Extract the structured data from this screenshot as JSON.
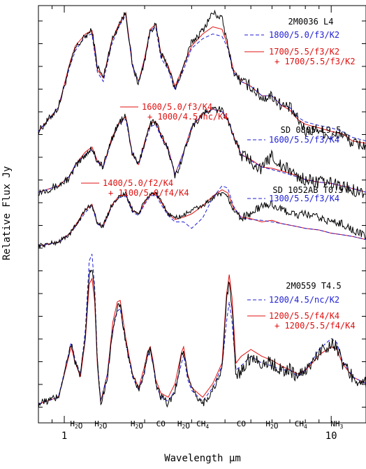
{
  "chart_data": {
    "type": "line",
    "title": "",
    "xlabel": "Wavelength μm",
    "ylabel": "Relative Flux Jy",
    "x_scale": "log",
    "xlim": [
      0.8,
      13.5
    ],
    "x_ticks": [
      {
        "value": 1,
        "label": "1"
      },
      {
        "value": 10,
        "label": "10"
      }
    ],
    "colors": {
      "observed": "#000000",
      "model_blue": "#1f1fd6",
      "model_red": "#e01010"
    },
    "features": [
      {
        "x": 1.11,
        "label": "H2O"
      },
      {
        "x": 1.37,
        "label": "H2O"
      },
      {
        "x": 1.87,
        "label": "H2O"
      },
      {
        "x": 2.3,
        "label": "CO"
      },
      {
        "x": 2.8,
        "label": "H2O"
      },
      {
        "x": 3.3,
        "label": "CH4"
      },
      {
        "x": 4.6,
        "label": "CO"
      },
      {
        "x": 6.0,
        "label": "H2O"
      },
      {
        "x": 7.7,
        "label": "CH4"
      },
      {
        "x": 10.5,
        "label": "NH3"
      }
    ],
    "spectra": [
      {
        "object": "2M0036 L4",
        "models": [
          {
            "style": "dashed",
            "color": "blue",
            "lines": [
              "1800/5.0/f3/K2"
            ]
          },
          {
            "style": "solid",
            "color": "red",
            "lines": [
              "1700/5.5/f3/K2",
              "+ 1700/5.5/f3/K2"
            ]
          }
        ],
        "x": [
          0.8,
          0.95,
          1.05,
          1.1,
          1.2,
          1.27,
          1.33,
          1.4,
          1.5,
          1.6,
          1.7,
          1.8,
          1.9,
          2.0,
          2.1,
          2.2,
          2.3,
          2.45,
          2.6,
          2.8,
          3.0,
          3.3,
          3.6,
          3.9,
          4.1,
          4.3,
          4.6,
          5.0,
          5.5,
          6.0,
          6.5,
          7.0,
          7.5,
          8.0,
          9.0,
          10.0,
          11.0,
          12.0,
          13.5
        ],
        "observed": [
          0.0,
          0.2,
          0.55,
          0.7,
          0.8,
          0.85,
          0.55,
          0.45,
          0.75,
          0.9,
          1.0,
          0.55,
          0.4,
          0.6,
          0.85,
          0.9,
          0.65,
          0.55,
          0.35,
          0.55,
          0.75,
          0.85,
          1.0,
          0.95,
          0.72,
          0.5,
          0.42,
          0.38,
          0.28,
          0.3,
          0.22,
          0.2,
          0.1,
          0.0,
          0.02,
          -0.05,
          -0.02,
          -0.1,
          -0.12
        ],
        "model_blue": [
          0.0,
          0.2,
          0.55,
          0.68,
          0.8,
          0.82,
          0.5,
          0.42,
          0.72,
          0.88,
          0.98,
          0.55,
          0.42,
          0.6,
          0.85,
          0.88,
          0.62,
          0.52,
          0.35,
          0.52,
          0.7,
          0.78,
          0.82,
          0.8,
          0.7,
          0.5,
          0.42,
          0.38,
          0.3,
          0.3,
          0.22,
          0.2,
          0.12,
          0.08,
          0.05,
          0.03,
          0.0,
          -0.05,
          -0.08
        ],
        "model_red": [
          0.0,
          0.2,
          0.58,
          0.72,
          0.82,
          0.85,
          0.52,
          0.45,
          0.75,
          0.9,
          1.0,
          0.55,
          0.42,
          0.62,
          0.86,
          0.9,
          0.66,
          0.55,
          0.38,
          0.55,
          0.72,
          0.82,
          0.88,
          0.86,
          0.72,
          0.52,
          0.42,
          0.38,
          0.3,
          0.3,
          0.22,
          0.18,
          0.1,
          0.06,
          0.03,
          0.0,
          -0.02,
          -0.08,
          -0.1
        ]
      },
      {
        "object": "SD 0805 L9.5",
        "models": [
          {
            "style": "solid",
            "color": "red",
            "lines": [
              "1600/5.0/f3/K4",
              "+ 1000/4.5/nc/K4"
            ]
          },
          {
            "style": "dashed",
            "color": "blue",
            "lines": [
              "1600/5.5/f3/K4"
            ]
          }
        ],
        "x": [
          0.8,
          0.95,
          1.05,
          1.1,
          1.2,
          1.27,
          1.33,
          1.4,
          1.5,
          1.6,
          1.7,
          1.8,
          1.9,
          2.0,
          2.1,
          2.2,
          2.3,
          2.45,
          2.6,
          2.8,
          3.0,
          3.3,
          3.6,
          3.9,
          4.1,
          4.3,
          4.6,
          5.0,
          5.5,
          6.0,
          6.5,
          7.0,
          7.5,
          8.0,
          9.0,
          10.0,
          11.0,
          12.0,
          13.5
        ],
        "observed": [
          0.0,
          0.05,
          0.12,
          0.2,
          0.3,
          0.35,
          0.25,
          0.2,
          0.42,
          0.55,
          0.6,
          0.3,
          0.22,
          0.4,
          0.55,
          0.56,
          0.45,
          0.35,
          0.12,
          0.3,
          0.52,
          0.62,
          0.66,
          0.65,
          0.58,
          0.45,
          0.3,
          0.25,
          0.18,
          0.3,
          0.2,
          0.18,
          0.12,
          0.1,
          0.08,
          0.07,
          0.05,
          0.02,
          0.0
        ],
        "model_blue": [
          0.0,
          0.05,
          0.13,
          0.22,
          0.3,
          0.34,
          0.24,
          0.2,
          0.4,
          0.54,
          0.58,
          0.3,
          0.22,
          0.38,
          0.52,
          0.54,
          0.44,
          0.34,
          0.14,
          0.32,
          0.52,
          0.62,
          0.66,
          0.64,
          0.58,
          0.45,
          0.3,
          0.25,
          0.2,
          0.18,
          0.16,
          0.14,
          0.12,
          0.1,
          0.08,
          0.07,
          0.05,
          0.03,
          0.0
        ],
        "model_red": [
          0.0,
          0.05,
          0.13,
          0.22,
          0.32,
          0.36,
          0.25,
          0.2,
          0.42,
          0.55,
          0.6,
          0.3,
          0.22,
          0.4,
          0.55,
          0.56,
          0.45,
          0.35,
          0.14,
          0.32,
          0.52,
          0.62,
          0.66,
          0.64,
          0.58,
          0.45,
          0.3,
          0.26,
          0.2,
          0.19,
          0.17,
          0.15,
          0.13,
          0.1,
          0.08,
          0.07,
          0.05,
          0.03,
          0.0
        ]
      },
      {
        "object": "SD 1052AB T0.5",
        "models": [
          {
            "style": "solid",
            "color": "red",
            "lines": [
              "1400/5.0/f2/K4",
              "+ 1100/5.0/f4/K4"
            ]
          },
          {
            "style": "dashed",
            "color": "blue",
            "lines": [
              "1300/5.5/f3/K4"
            ]
          }
        ],
        "x": [
          0.8,
          0.95,
          1.05,
          1.1,
          1.2,
          1.27,
          1.33,
          1.4,
          1.5,
          1.6,
          1.7,
          1.8,
          1.9,
          2.0,
          2.1,
          2.2,
          2.3,
          2.45,
          2.6,
          2.8,
          3.0,
          3.3,
          3.6,
          3.9,
          4.1,
          4.3,
          4.6,
          5.0,
          5.5,
          6.0,
          6.5,
          7.0,
          7.5,
          8.0,
          9.0,
          10.0,
          11.0,
          12.0,
          13.5
        ],
        "observed": [
          0.0,
          0.05,
          0.15,
          0.25,
          0.45,
          0.52,
          0.28,
          0.25,
          0.5,
          0.62,
          0.65,
          0.45,
          0.4,
          0.55,
          0.65,
          0.66,
          0.55,
          0.4,
          0.35,
          0.38,
          0.45,
          0.5,
          0.6,
          0.65,
          0.6,
          0.45,
          0.35,
          0.4,
          0.5,
          0.52,
          0.45,
          0.42,
          0.38,
          0.4,
          0.35,
          0.3,
          0.28,
          0.2,
          0.12
        ],
        "model_blue": [
          0.0,
          0.05,
          0.15,
          0.24,
          0.42,
          0.5,
          0.27,
          0.24,
          0.48,
          0.6,
          0.62,
          0.42,
          0.38,
          0.52,
          0.62,
          0.64,
          0.52,
          0.38,
          0.3,
          0.3,
          0.22,
          0.35,
          0.6,
          0.75,
          0.72,
          0.5,
          0.35,
          0.33,
          0.32,
          0.3,
          0.28,
          0.26,
          0.24,
          0.22,
          0.2,
          0.16,
          0.14,
          0.12,
          0.08
        ],
        "model_red": [
          0.0,
          0.05,
          0.16,
          0.26,
          0.45,
          0.52,
          0.28,
          0.25,
          0.5,
          0.62,
          0.64,
          0.44,
          0.4,
          0.54,
          0.64,
          0.66,
          0.55,
          0.4,
          0.33,
          0.36,
          0.4,
          0.5,
          0.62,
          0.7,
          0.66,
          0.48,
          0.36,
          0.34,
          0.3,
          0.32,
          0.28,
          0.26,
          0.24,
          0.22,
          0.2,
          0.16,
          0.14,
          0.12,
          0.08
        ]
      },
      {
        "object": "2M0559 T4.5",
        "models": [
          {
            "style": "dashed",
            "color": "blue",
            "lines": [
              "1200/4.5/nc/K2"
            ]
          },
          {
            "style": "solid",
            "color": "red",
            "lines": [
              "1200/5.5/f4/K4",
              "+ 1200/5.5/f4/K4"
            ]
          }
        ],
        "x": [
          0.8,
          0.95,
          1.02,
          1.06,
          1.1,
          1.15,
          1.2,
          1.24,
          1.27,
          1.3,
          1.33,
          1.37,
          1.45,
          1.52,
          1.58,
          1.62,
          1.7,
          1.8,
          1.9,
          2.0,
          2.05,
          2.1,
          2.15,
          2.2,
          2.3,
          2.45,
          2.6,
          2.75,
          2.8,
          2.9,
          3.0,
          3.3,
          3.6,
          3.9,
          4.05,
          4.15,
          4.25,
          4.4,
          4.6,
          5.0,
          5.5,
          6.0,
          6.5,
          7.0,
          7.5,
          8.0,
          8.5,
          9.0,
          10.0,
          10.5,
          11.0,
          12.0,
          13.5
        ],
        "observed": [
          0.0,
          0.05,
          0.3,
          0.45,
          0.3,
          0.2,
          0.5,
          0.95,
          1.0,
          0.8,
          0.3,
          0.0,
          0.2,
          0.55,
          0.7,
          0.72,
          0.45,
          0.2,
          0.1,
          0.25,
          0.35,
          0.4,
          0.3,
          0.15,
          0.05,
          0.0,
          0.1,
          0.35,
          0.4,
          0.2,
          0.1,
          0.0,
          0.1,
          0.25,
          0.75,
          0.9,
          0.7,
          0.2,
          0.25,
          0.35,
          0.3,
          0.3,
          0.25,
          0.25,
          0.2,
          0.25,
          0.3,
          0.38,
          0.45,
          0.42,
          0.3,
          0.2,
          0.15
        ],
        "model_blue": [
          0.0,
          0.05,
          0.3,
          0.45,
          0.32,
          0.22,
          0.55,
          1.05,
          1.1,
          0.85,
          0.32,
          0.02,
          0.22,
          0.55,
          0.68,
          0.7,
          0.45,
          0.2,
          0.1,
          0.25,
          0.35,
          0.4,
          0.3,
          0.15,
          0.05,
          0.02,
          0.1,
          0.3,
          0.36,
          0.18,
          0.1,
          0.02,
          0.12,
          0.28,
          0.6,
          0.75,
          0.6,
          0.25,
          0.28,
          0.35,
          0.3,
          0.28,
          0.25,
          0.25,
          0.2,
          0.25,
          0.32,
          0.4,
          0.48,
          0.45,
          0.32,
          0.2,
          0.15
        ],
        "model_red": [
          0.0,
          0.05,
          0.28,
          0.42,
          0.3,
          0.2,
          0.48,
          0.88,
          0.92,
          0.75,
          0.28,
          0.02,
          0.22,
          0.6,
          0.75,
          0.76,
          0.48,
          0.22,
          0.12,
          0.28,
          0.38,
          0.42,
          0.32,
          0.18,
          0.08,
          0.05,
          0.15,
          0.38,
          0.42,
          0.22,
          0.12,
          0.05,
          0.15,
          0.3,
          0.8,
          0.95,
          0.78,
          0.3,
          0.35,
          0.4,
          0.35,
          0.32,
          0.28,
          0.25,
          0.22,
          0.25,
          0.3,
          0.36,
          0.42,
          0.4,
          0.3,
          0.2,
          0.15
        ]
      }
    ]
  }
}
